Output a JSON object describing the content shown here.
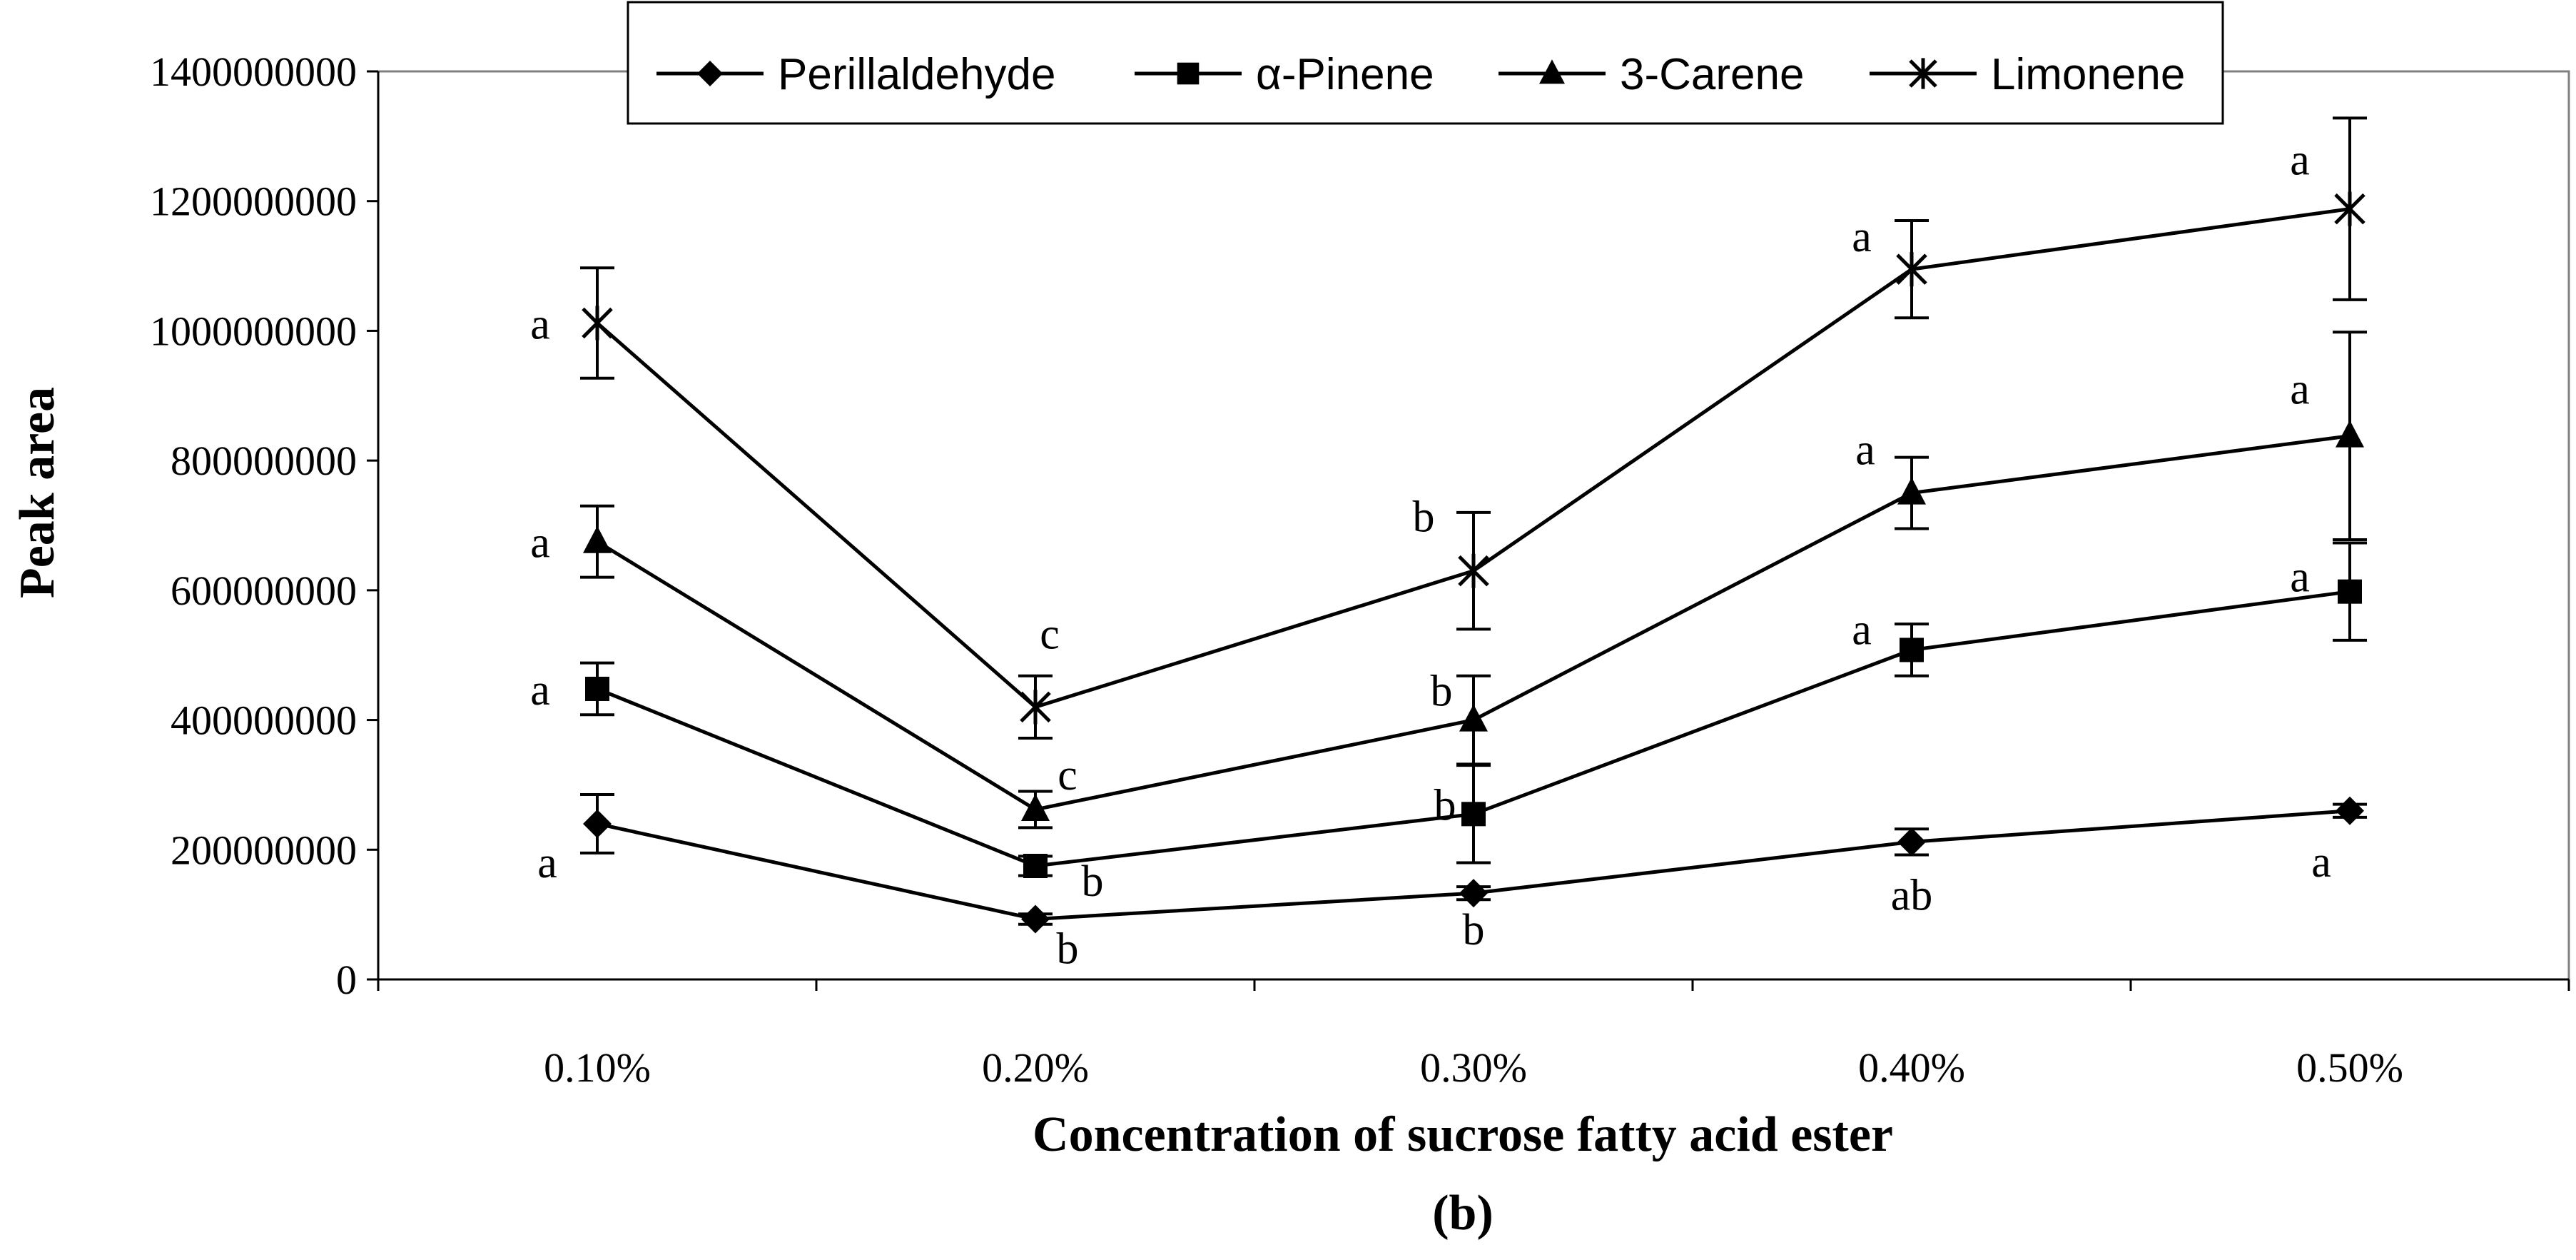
{
  "chart_data": {
    "type": "line",
    "xlabel": "Concentration of sucrose fatty acid ester",
    "ylabel": "Peak area",
    "panel_label": "(b)",
    "categories": [
      "0.10%",
      "0.20%",
      "0.30%",
      "0.40%",
      "0.50%"
    ],
    "ylim": [
      0,
      1400000000
    ],
    "yticks": [
      "0",
      "200000000",
      "400000000",
      "600000000",
      "800000000",
      "1000000000",
      "1200000000",
      "1400000000"
    ],
    "legend_position": "top",
    "series": [
      {
        "name": "Perillaldehyde",
        "marker": "diamond",
        "values": [
          240000000,
          93000000,
          133000000,
          212000000,
          260000000
        ],
        "errors": [
          45000000,
          8000000,
          10000000,
          20000000,
          10000000
        ],
        "labels": [
          "a",
          "b",
          "b",
          "ab",
          "a"
        ]
      },
      {
        "name": "α-Pinene",
        "marker": "square",
        "values": [
          448000000,
          175000000,
          255000000,
          508000000,
          598000000
        ],
        "errors": [
          40000000,
          15000000,
          75000000,
          40000000,
          75000000
        ],
        "labels": [
          "a",
          "b",
          "b",
          "a",
          "a"
        ]
      },
      {
        "name": "3-Carene",
        "marker": "triangle",
        "values": [
          675000000,
          262000000,
          400000000,
          750000000,
          838000000
        ],
        "errors": [
          55000000,
          28000000,
          68000000,
          55000000,
          160000000
        ],
        "labels": [
          "a",
          "c",
          "b",
          "a",
          "a"
        ]
      },
      {
        "name": "Limonene",
        "marker": "x",
        "values": [
          1012000000,
          420000000,
          630000000,
          1095000000,
          1188000000
        ],
        "errors": [
          85000000,
          48000000,
          90000000,
          75000000,
          140000000
        ],
        "labels": [
          "a",
          "c",
          "b",
          "a",
          "a"
        ]
      }
    ]
  }
}
